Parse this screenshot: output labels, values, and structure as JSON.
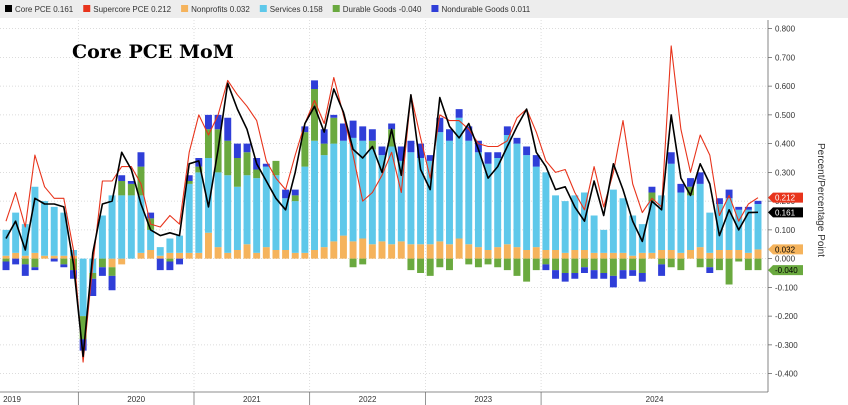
{
  "colors": {
    "core": "#000000",
    "supercore": "#e8341c",
    "nonprofits": "#f5b35c",
    "services": "#5ec8ea",
    "durable": "#6aa93f",
    "nondurable": "#2f3ed8",
    "grid": "#d0d0d0",
    "badge_text_light": "#ffffff",
    "badge_text_dark": "#000000"
  },
  "legend": [
    {
      "key": "core",
      "label": "Core PCE",
      "value": "0.161"
    },
    {
      "key": "supercore",
      "label": "Supercore PCE",
      "value": "0.212"
    },
    {
      "key": "nonprofits",
      "label": "Nonprofits",
      "value": "0.032"
    },
    {
      "key": "services",
      "label": "Services",
      "value": "0.158"
    },
    {
      "key": "durable",
      "label": "Durable Goods",
      "value": "-0.040"
    },
    {
      "key": "nondurable",
      "label": "Nondurable Goods",
      "value": "0.011"
    }
  ],
  "chart_data": {
    "type": "bar",
    "title": "Core PCE MoM",
    "ylabel": "Percent/Percentage Point",
    "ylim": [
      -0.45,
      0.83
    ],
    "yticks": [
      "-0.400",
      "-0.300",
      "-0.200",
      "-0.100",
      "0.000",
      "0.100",
      "0.200",
      "0.300",
      "0.400",
      "0.500",
      "0.600",
      "0.700",
      "0.800"
    ],
    "years": [
      "2019",
      "2020",
      "2021",
      "2022",
      "2023",
      "2024"
    ],
    "grid": true,
    "legend_position": "top",
    "bar_series": [
      {
        "name": "Nonprofits",
        "key": "nonprofits",
        "values": [
          0.01,
          0.02,
          0.01,
          0.02,
          0.01,
          0.01,
          0.01,
          0.01,
          0.0,
          0.0,
          0.0,
          -0.03,
          -0.02,
          0.0,
          0.02,
          0.03,
          0.01,
          0.02,
          0.02,
          0.02,
          0.02,
          0.09,
          0.04,
          0.02,
          0.03,
          0.05,
          0.02,
          0.04,
          0.03,
          0.03,
          0.02,
          0.02,
          0.03,
          0.04,
          0.06,
          0.08,
          0.06,
          0.07,
          0.05,
          0.06,
          0.05,
          0.06,
          0.05,
          0.05,
          0.05,
          0.06,
          0.05,
          0.07,
          0.05,
          0.04,
          0.03,
          0.04,
          0.05,
          0.04,
          0.03,
          0.04,
          0.03,
          0.03,
          0.02,
          0.03,
          0.03,
          0.02,
          0.02,
          0.02,
          0.02,
          0.01,
          0.02,
          0.02,
          0.03,
          0.03,
          0.02,
          0.03,
          0.04,
          0.02,
          0.03,
          0.03,
          0.03,
          0.02,
          0.032
        ]
      },
      {
        "name": "Services",
        "key": "services",
        "values": [
          0.09,
          0.14,
          0.11,
          0.23,
          0.19,
          0.17,
          0.15,
          0.02,
          -0.2,
          -0.05,
          0.15,
          0.22,
          0.22,
          0.22,
          0.2,
          0.07,
          0.03,
          0.05,
          0.06,
          0.24,
          0.28,
          0.26,
          0.26,
          0.27,
          0.22,
          0.24,
          0.26,
          0.28,
          0.26,
          0.18,
          0.18,
          0.3,
          0.38,
          0.32,
          0.34,
          0.33,
          0.36,
          0.34,
          0.33,
          0.3,
          0.34,
          0.28,
          0.32,
          0.3,
          0.29,
          0.38,
          0.36,
          0.42,
          0.36,
          0.33,
          0.3,
          0.31,
          0.38,
          0.36,
          0.33,
          0.28,
          0.27,
          0.19,
          0.18,
          0.19,
          0.2,
          0.13,
          0.08,
          0.22,
          0.19,
          0.14,
          0.1,
          0.18,
          0.19,
          0.3,
          0.21,
          0.19,
          0.22,
          0.14,
          0.16,
          0.18,
          0.14,
          0.15,
          0.158
        ]
      },
      {
        "name": "Durable Goods",
        "key": "durable",
        "values": [
          -0.01,
          0.0,
          -0.02,
          -0.03,
          0.0,
          0.0,
          -0.02,
          -0.04,
          -0.08,
          -0.02,
          -0.03,
          -0.03,
          0.05,
          0.04,
          0.1,
          0.04,
          0.0,
          -0.01,
          0.0,
          0.01,
          0.02,
          0.1,
          0.15,
          0.12,
          0.1,
          0.08,
          0.03,
          0.0,
          0.05,
          0.0,
          0.02,
          0.12,
          0.18,
          0.04,
          0.09,
          0.0,
          -0.03,
          -0.02,
          0.03,
          0.0,
          0.06,
          0.0,
          -0.04,
          -0.05,
          -0.06,
          -0.03,
          -0.04,
          0.0,
          -0.02,
          -0.03,
          -0.02,
          -0.03,
          -0.04,
          -0.06,
          -0.08,
          -0.04,
          -0.02,
          -0.04,
          -0.05,
          -0.05,
          -0.03,
          -0.04,
          -0.05,
          -0.06,
          -0.04,
          -0.04,
          -0.05,
          0.03,
          -0.02,
          -0.03,
          -0.04,
          0.03,
          -0.03,
          -0.03,
          -0.04,
          -0.09,
          -0.01,
          -0.04,
          -0.04
        ]
      },
      {
        "name": "Nondurable Goods",
        "key": "nondurable",
        "values": [
          -0.03,
          -0.02,
          -0.04,
          -0.01,
          0.0,
          -0.01,
          -0.01,
          -0.03,
          -0.04,
          -0.06,
          -0.03,
          -0.05,
          0.02,
          0.01,
          0.05,
          0.02,
          -0.04,
          -0.03,
          -0.02,
          0.02,
          0.03,
          0.05,
          0.05,
          0.08,
          0.05,
          0.03,
          0.04,
          0.01,
          0.0,
          0.03,
          0.02,
          0.02,
          0.03,
          0.05,
          0.01,
          0.06,
          0.06,
          0.05,
          0.04,
          0.03,
          0.02,
          0.05,
          0.04,
          0.05,
          0.02,
          0.05,
          0.04,
          0.03,
          0.05,
          0.04,
          0.04,
          0.02,
          0.03,
          0.02,
          0.03,
          0.04,
          -0.02,
          -0.03,
          -0.03,
          -0.02,
          -0.02,
          -0.03,
          -0.02,
          -0.04,
          -0.03,
          -0.02,
          -0.03,
          0.02,
          -0.04,
          0.04,
          0.03,
          0.03,
          0.04,
          -0.02,
          0.02,
          0.03,
          0.01,
          0.01,
          0.011
        ]
      }
    ],
    "line_series": [
      {
        "name": "Core PCE",
        "key": "core",
        "values": [
          0.07,
          0.13,
          0.03,
          0.21,
          0.19,
          0.19,
          0.18,
          -0.02,
          -0.34,
          0.02,
          0.19,
          0.2,
          0.37,
          0.31,
          0.19,
          0.1,
          0.08,
          0.09,
          0.08,
          0.33,
          0.34,
          0.18,
          0.38,
          0.61,
          0.52,
          0.45,
          0.33,
          0.27,
          0.21,
          0.17,
          0.3,
          0.47,
          0.53,
          0.44,
          0.59,
          0.51,
          0.38,
          0.35,
          0.39,
          0.3,
          0.45,
          0.29,
          0.57,
          0.31,
          0.24,
          0.56,
          0.46,
          0.42,
          0.47,
          0.38,
          0.28,
          0.32,
          0.39,
          0.46,
          0.52,
          0.37,
          0.32,
          0.24,
          0.25,
          0.18,
          0.13,
          0.27,
          0.15,
          0.33,
          0.24,
          0.13,
          0.06,
          0.2,
          0.17,
          0.5,
          0.28,
          0.22,
          0.33,
          0.26,
          0.08,
          0.17,
          0.1,
          0.16,
          0.161
        ]
      },
      {
        "name": "Supercore PCE",
        "key": "supercore",
        "values": [
          0.13,
          0.23,
          0.11,
          0.36,
          0.25,
          0.21,
          0.21,
          0.03,
          -0.36,
          -0.02,
          0.27,
          0.27,
          0.32,
          0.32,
          0.26,
          0.12,
          0.11,
          0.15,
          0.12,
          0.37,
          0.5,
          0.43,
          0.5,
          0.62,
          0.57,
          0.53,
          0.48,
          0.34,
          0.28,
          0.24,
          0.36,
          0.47,
          0.55,
          0.47,
          0.63,
          0.5,
          0.36,
          0.2,
          0.23,
          0.29,
          0.37,
          0.23,
          0.57,
          0.42,
          0.28,
          0.5,
          0.48,
          0.48,
          0.45,
          0.4,
          0.39,
          0.39,
          0.41,
          0.49,
          0.52,
          0.44,
          0.34,
          0.3,
          0.31,
          0.23,
          0.17,
          0.32,
          0.18,
          0.3,
          0.48,
          0.26,
          0.16,
          0.21,
          0.18,
          0.74,
          0.45,
          0.3,
          0.43,
          0.36,
          0.15,
          0.22,
          0.13,
          0.19,
          0.212
        ]
      }
    ],
    "badges": [
      {
        "key": "supercore",
        "value": "0.212"
      },
      {
        "key": "core",
        "value": "0.161"
      },
      {
        "key": "nonprofits",
        "value": "0.032"
      },
      {
        "key": "durable",
        "value": "-0.040"
      }
    ]
  }
}
